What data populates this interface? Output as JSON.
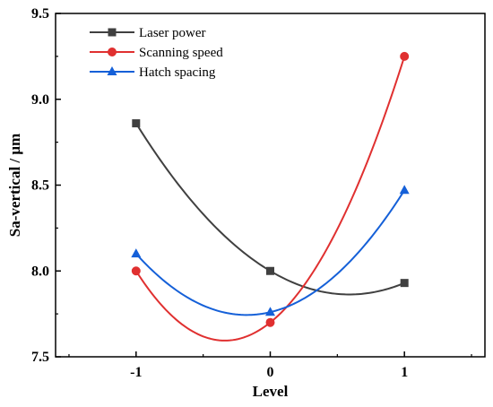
{
  "chart_data": {
    "type": "line",
    "title": "",
    "xlabel": "Level",
    "ylabel": "Sa-vertical / μm",
    "x": [
      -1,
      0,
      1
    ],
    "x_tick_labels": [
      "-1",
      "0",
      "1"
    ],
    "xlim": [
      -1.6,
      1.6
    ],
    "ylim": [
      7.5,
      9.5
    ],
    "y_ticks": [
      7.5,
      8.0,
      8.5,
      9.0,
      9.5
    ],
    "y_tick_labels": [
      "7.5",
      "8.0",
      "8.5",
      "9.0",
      "9.5"
    ],
    "grid": false,
    "legend_position": "top-left",
    "series": [
      {
        "name": "Laser power",
        "values": [
          8.86,
          8.0,
          7.93
        ],
        "color": "#404040",
        "marker": "square"
      },
      {
        "name": "Scanning speed",
        "values": [
          8.0,
          7.7,
          9.25
        ],
        "color": "#e03030",
        "marker": "circle"
      },
      {
        "name": "Hatch spacing",
        "values": [
          8.1,
          7.76,
          8.47
        ],
        "color": "#1560d8",
        "marker": "triangle"
      }
    ]
  }
}
